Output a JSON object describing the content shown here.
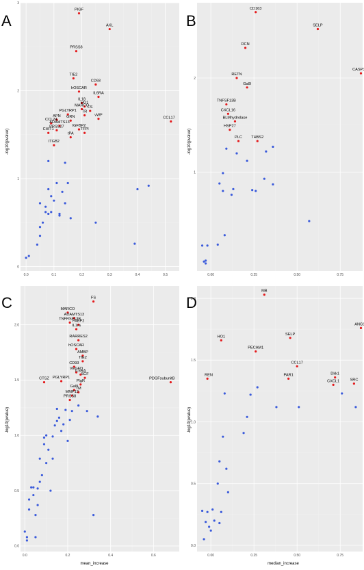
{
  "chart_data": [
    {
      "panel": "A",
      "type": "scatter",
      "xlabel": "",
      "ylabel": "-log10(pvalue)",
      "xlim": [
        -0.02,
        0.55
      ],
      "ylim": [
        -0.05,
        3.0
      ],
      "xticks": [
        0.0,
        0.1,
        0.2,
        0.3,
        0.4,
        0.5
      ],
      "xtick_labels": [
        "0.0",
        "0.1",
        "0.2",
        "0.3",
        "0.4",
        "0.5"
      ],
      "yticks": [
        0,
        1,
        2,
        3
      ],
      "ytick_labels": [
        "0",
        "1",
        "2",
        "3"
      ],
      "colors": {
        "significant": "#e41a1c",
        "nonsignificant": "#3b5bdb"
      },
      "labeled_points": [
        {
          "label": "PIGF",
          "x": 0.19,
          "y": 2.88
        },
        {
          "label": "AXL",
          "x": 0.3,
          "y": 2.7
        },
        {
          "label": "PRSS8",
          "x": 0.18,
          "y": 2.45
        },
        {
          "label": "TIE2",
          "x": 0.17,
          "y": 2.14
        },
        {
          "label": "CD93",
          "x": 0.25,
          "y": 2.07
        },
        {
          "label": "hOSCAR",
          "x": 0.19,
          "y": 1.99
        },
        {
          "label": "IL6RA",
          "x": 0.26,
          "y": 1.93
        },
        {
          "label": "IL18",
          "x": 0.2,
          "y": 1.86
        },
        {
          "label": "HO1",
          "x": 0.21,
          "y": 1.82
        },
        {
          "label": "MARCO",
          "x": 0.2,
          "y": 1.79
        },
        {
          "label": "FS",
          "x": 0.23,
          "y": 1.77
        },
        {
          "label": "PGLYRP1",
          "x": 0.15,
          "y": 1.73
        },
        {
          "label": "TR",
          "x": 0.21,
          "y": 1.72
        },
        {
          "label": "APN",
          "x": 0.11,
          "y": 1.67
        },
        {
          "label": "GRN",
          "x": 0.16,
          "y": 1.66
        },
        {
          "label": "vWF",
          "x": 0.26,
          "y": 1.68
        },
        {
          "label": "CCL17",
          "x": 0.52,
          "y": 1.65
        },
        {
          "label": "CCL24",
          "x": 0.09,
          "y": 1.63
        },
        {
          "label": "ADAMTS13",
          "x": 0.12,
          "y": 1.6
        },
        {
          "label": "IGFBP2",
          "x": 0.19,
          "y": 1.56
        },
        {
          "label": "PRSS27",
          "x": 0.11,
          "y": 1.55
        },
        {
          "label": "CHIT1",
          "x": 0.08,
          "y": 1.52
        },
        {
          "label": "TFPI",
          "x": 0.21,
          "y": 1.52
        },
        {
          "label": "tPA",
          "x": 0.16,
          "y": 1.47
        },
        {
          "label": "ITGB2",
          "x": 0.1,
          "y": 1.38
        }
      ],
      "points": [
        {
          "x": 0.0,
          "y": 0.1
        },
        {
          "x": 0.01,
          "y": 0.12
        },
        {
          "x": 0.04,
          "y": 0.25
        },
        {
          "x": 0.05,
          "y": 0.35
        },
        {
          "x": 0.05,
          "y": 0.45
        },
        {
          "x": 0.06,
          "y": 0.5
        },
        {
          "x": 0.05,
          "y": 0.72
        },
        {
          "x": 0.07,
          "y": 0.62
        },
        {
          "x": 0.08,
          "y": 0.6
        },
        {
          "x": 0.09,
          "y": 0.62
        },
        {
          "x": 0.07,
          "y": 0.68
        },
        {
          "x": 0.08,
          "y": 0.88
        },
        {
          "x": 0.09,
          "y": 0.8
        },
        {
          "x": 0.1,
          "y": 0.75
        },
        {
          "x": 0.11,
          "y": 0.95
        },
        {
          "x": 0.12,
          "y": 0.6
        },
        {
          "x": 0.12,
          "y": 0.58
        },
        {
          "x": 0.13,
          "y": 0.85
        },
        {
          "x": 0.14,
          "y": 0.72
        },
        {
          "x": 0.15,
          "y": 0.95
        },
        {
          "x": 0.08,
          "y": 1.2
        },
        {
          "x": 0.14,
          "y": 1.18
        },
        {
          "x": 0.16,
          "y": 0.55
        },
        {
          "x": 0.25,
          "y": 0.5
        },
        {
          "x": 0.39,
          "y": 0.26
        },
        {
          "x": 0.4,
          "y": 0.88
        },
        {
          "x": 0.44,
          "y": 0.92
        }
      ]
    },
    {
      "panel": "B",
      "type": "scatter",
      "xlabel": "",
      "ylabel": "-log10(pvalue)",
      "xlim": [
        -0.08,
        0.88
      ],
      "ylim": [
        -0.05,
        2.8
      ],
      "xticks": [
        0.0,
        0.25,
        0.5,
        0.75
      ],
      "xtick_labels": [
        "0.00",
        "0.25",
        "0.50",
        "0.75"
      ],
      "yticks": [
        1,
        2
      ],
      "ytick_labels": [
        "1",
        "2"
      ],
      "colors": {
        "significant": "#e41a1c",
        "nonsignificant": "#3b5bdb"
      },
      "labeled_points": [
        {
          "label": "CD163",
          "x": 0.26,
          "y": 2.7
        },
        {
          "label": "SELP",
          "x": 0.62,
          "y": 2.52
        },
        {
          "label": "DCN",
          "x": 0.2,
          "y": 2.32
        },
        {
          "label": "CASP3",
          "x": 0.87,
          "y": 2.05
        },
        {
          "label": "RETN",
          "x": 0.15,
          "y": 2.0
        },
        {
          "label": "Gal9",
          "x": 0.21,
          "y": 1.9
        },
        {
          "label": "TNFSF13B",
          "x": 0.09,
          "y": 1.72
        },
        {
          "label": "CXCL16",
          "x": 0.1,
          "y": 1.62
        },
        {
          "label": "BLMhydrolase",
          "x": 0.14,
          "y": 1.54
        },
        {
          "label": "HSP27",
          "x": 0.11,
          "y": 1.45
        },
        {
          "label": "THBS2",
          "x": 0.27,
          "y": 1.33
        },
        {
          "label": "PLC",
          "x": 0.16,
          "y": 1.33
        }
      ],
      "points": [
        {
          "x": -0.05,
          "y": 0.22
        },
        {
          "x": -0.04,
          "y": 0.05
        },
        {
          "x": -0.03,
          "y": 0.03
        },
        {
          "x": -0.02,
          "y": 0.22
        },
        {
          "x": -0.03,
          "y": 0.06
        },
        {
          "x": 0.04,
          "y": 0.23
        },
        {
          "x": 0.05,
          "y": 0.88
        },
        {
          "x": 0.07,
          "y": 0.99
        },
        {
          "x": 0.07,
          "y": 0.8
        },
        {
          "x": 0.08,
          "y": 0.33
        },
        {
          "x": 0.09,
          "y": 1.25
        },
        {
          "x": 0.12,
          "y": 0.76
        },
        {
          "x": 0.13,
          "y": 0.82
        },
        {
          "x": 0.15,
          "y": 1.2
        },
        {
          "x": 0.21,
          "y": 1.12
        },
        {
          "x": 0.24,
          "y": 0.81
        },
        {
          "x": 0.26,
          "y": 0.8
        },
        {
          "x": 0.31,
          "y": 0.93
        },
        {
          "x": 0.32,
          "y": 1.22
        },
        {
          "x": 0.36,
          "y": 1.27
        },
        {
          "x": 0.36,
          "y": 0.87
        },
        {
          "x": 0.57,
          "y": 0.48
        }
      ]
    },
    {
      "panel": "C",
      "type": "scatter",
      "xlabel": "mean_increase",
      "ylabel": "-log10(pvalue)",
      "xlim": [
        -0.02,
        0.72
      ],
      "ylim": [
        -0.05,
        2.35
      ],
      "xticks": [
        0.0,
        0.2,
        0.4,
        0.6
      ],
      "xtick_labels": [
        "0.0",
        "0.2",
        "0.4",
        "0.6"
      ],
      "yticks": [
        0.0,
        0.5,
        1.0,
        1.5,
        2.0
      ],
      "ytick_labels": [
        "0.0",
        "0.5",
        "1.0",
        "1.5",
        "2.0"
      ],
      "colors": {
        "significant": "#e41a1c",
        "nonsignificant": "#3b5bdb"
      },
      "labeled_points": [
        {
          "label": "FS",
          "x": 0.32,
          "y": 2.21
        },
        {
          "label": "MARCO",
          "x": 0.2,
          "y": 2.11
        },
        {
          "label": "ADAMTS13",
          "x": 0.23,
          "y": 2.06
        },
        {
          "label": "TNFRSF13B",
          "x": 0.21,
          "y": 2.02
        },
        {
          "label": "FABP2",
          "x": 0.25,
          "y": 2.0
        },
        {
          "label": "IL1ra",
          "x": 0.24,
          "y": 1.96
        },
        {
          "label": "RARRES2",
          "x": 0.25,
          "y": 1.86
        },
        {
          "label": "hOSCAR",
          "x": 0.24,
          "y": 1.78
        },
        {
          "label": "AMBP",
          "x": 0.27,
          "y": 1.72
        },
        {
          "label": "TIE2",
          "x": 0.27,
          "y": 1.67
        },
        {
          "label": "CD93",
          "x": 0.23,
          "y": 1.62
        },
        {
          "label": "VEGFD",
          "x": 0.24,
          "y": 1.57
        },
        {
          "label": "IL6RA",
          "x": 0.26,
          "y": 1.55
        },
        {
          "label": "SCF",
          "x": 0.28,
          "y": 1.52
        },
        {
          "label": "CTSZ",
          "x": 0.09,
          "y": 1.48
        },
        {
          "label": "PGLYRP1",
          "x": 0.17,
          "y": 1.49
        },
        {
          "label": "PDGFsubunitB",
          "x": 0.68,
          "y": 1.48
        },
        {
          "label": "PIgR",
          "x": 0.26,
          "y": 1.46
        },
        {
          "label": "Gal9",
          "x": 0.23,
          "y": 1.41
        },
        {
          "label": "TM",
          "x": 0.25,
          "y": 1.39
        },
        {
          "label": "MMP12",
          "x": 0.22,
          "y": 1.36
        },
        {
          "label": "PRSS8",
          "x": 0.21,
          "y": 1.32
        }
      ],
      "points": [
        {
          "x": 0.0,
          "y": 0.13
        },
        {
          "x": 0.01,
          "y": 0.08
        },
        {
          "x": 0.01,
          "y": 0.05
        },
        {
          "x": 0.02,
          "y": 0.33
        },
        {
          "x": 0.02,
          "y": 0.42
        },
        {
          "x": 0.03,
          "y": 0.53
        },
        {
          "x": 0.04,
          "y": 0.53
        },
        {
          "x": 0.04,
          "y": 0.46
        },
        {
          "x": 0.05,
          "y": 0.28
        },
        {
          "x": 0.06,
          "y": 0.37
        },
        {
          "x": 0.06,
          "y": 0.52
        },
        {
          "x": 0.07,
          "y": 0.58
        },
        {
          "x": 0.07,
          "y": 0.79
        },
        {
          "x": 0.08,
          "y": 0.64
        },
        {
          "x": 0.09,
          "y": 0.92
        },
        {
          "x": 0.09,
          "y": 0.98
        },
        {
          "x": 0.1,
          "y": 1.0
        },
        {
          "x": 0.1,
          "y": 0.75
        },
        {
          "x": 0.11,
          "y": 0.87
        },
        {
          "x": 0.12,
          "y": 0.5
        },
        {
          "x": 0.13,
          "y": 0.79
        },
        {
          "x": 0.13,
          "y": 0.99
        },
        {
          "x": 0.14,
          "y": 1.09
        },
        {
          "x": 0.15,
          "y": 1.13
        },
        {
          "x": 0.15,
          "y": 1.24
        },
        {
          "x": 0.16,
          "y": 1.16
        },
        {
          "x": 0.17,
          "y": 1.04
        },
        {
          "x": 0.18,
          "y": 1.1
        },
        {
          "x": 0.19,
          "y": 1.23
        },
        {
          "x": 0.2,
          "y": 0.95
        },
        {
          "x": 0.21,
          "y": 1.14
        },
        {
          "x": 0.22,
          "y": 1.22
        },
        {
          "x": 0.25,
          "y": 1.27
        },
        {
          "x": 0.29,
          "y": 1.22
        },
        {
          "x": 0.34,
          "y": 1.17
        },
        {
          "x": 0.32,
          "y": 0.28
        },
        {
          "x": 0.05,
          "y": 0.08
        }
      ]
    },
    {
      "panel": "D",
      "type": "scatter",
      "xlabel": "median_increase",
      "ylabel": "-log10(pvalue)",
      "xlim": [
        -0.08,
        0.88
      ],
      "ylim": [
        -0.05,
        2.1
      ],
      "xticks": [
        0.0,
        0.25,
        0.5,
        0.75
      ],
      "xtick_labels": [
        "0.00",
        "0.25",
        "0.50",
        "0.75"
      ],
      "yticks": [
        0.0,
        0.5,
        1.0,
        1.5,
        2.0
      ],
      "ytick_labels": [
        "0.0",
        "0.5",
        "1.0",
        "1.5",
        "2.0"
      ],
      "colors": {
        "significant": "#e41a1c",
        "nonsignificant": "#3b5bdb"
      },
      "labeled_points": [
        {
          "label": "MB",
          "x": 0.31,
          "y": 2.03
        },
        {
          "label": "ANG1",
          "x": 0.87,
          "y": 1.76
        },
        {
          "label": "HO1",
          "x": 0.06,
          "y": 1.66
        },
        {
          "label": "SELP",
          "x": 0.46,
          "y": 1.68
        },
        {
          "label": "PECAM1",
          "x": 0.26,
          "y": 1.57
        },
        {
          "label": "CCL17",
          "x": 0.5,
          "y": 1.45
        },
        {
          "label": "REN",
          "x": -0.02,
          "y": 1.35
        },
        {
          "label": "PAR1",
          "x": 0.45,
          "y": 1.35
        },
        {
          "label": "Dkk1",
          "x": 0.72,
          "y": 1.36
        },
        {
          "label": "CXCL1",
          "x": 0.71,
          "y": 1.3
        },
        {
          "label": "SRC",
          "x": 0.83,
          "y": 1.31
        }
      ],
      "points": [
        {
          "x": -0.05,
          "y": 0.28
        },
        {
          "x": -0.04,
          "y": 0.05
        },
        {
          "x": -0.03,
          "y": 0.19
        },
        {
          "x": -0.02,
          "y": 0.27
        },
        {
          "x": -0.01,
          "y": 0.15
        },
        {
          "x": 0.0,
          "y": 0.12
        },
        {
          "x": 0.01,
          "y": 0.29
        },
        {
          "x": 0.02,
          "y": 0.2
        },
        {
          "x": 0.04,
          "y": 0.5
        },
        {
          "x": 0.05,
          "y": 0.18
        },
        {
          "x": 0.05,
          "y": 0.68
        },
        {
          "x": 0.06,
          "y": 0.27
        },
        {
          "x": 0.07,
          "y": 0.88
        },
        {
          "x": 0.08,
          "y": 1.23
        },
        {
          "x": 0.09,
          "y": 0.62
        },
        {
          "x": 0.1,
          "y": 0.43
        },
        {
          "x": 0.19,
          "y": 0.91
        },
        {
          "x": 0.21,
          "y": 1.04
        },
        {
          "x": 0.23,
          "y": 1.22
        },
        {
          "x": 0.27,
          "y": 1.28
        },
        {
          "x": 0.38,
          "y": 1.12
        },
        {
          "x": 0.51,
          "y": 1.12
        },
        {
          "x": 0.76,
          "y": 1.23
        },
        {
          "x": 0.84,
          "y": 1.12
        }
      ]
    }
  ]
}
